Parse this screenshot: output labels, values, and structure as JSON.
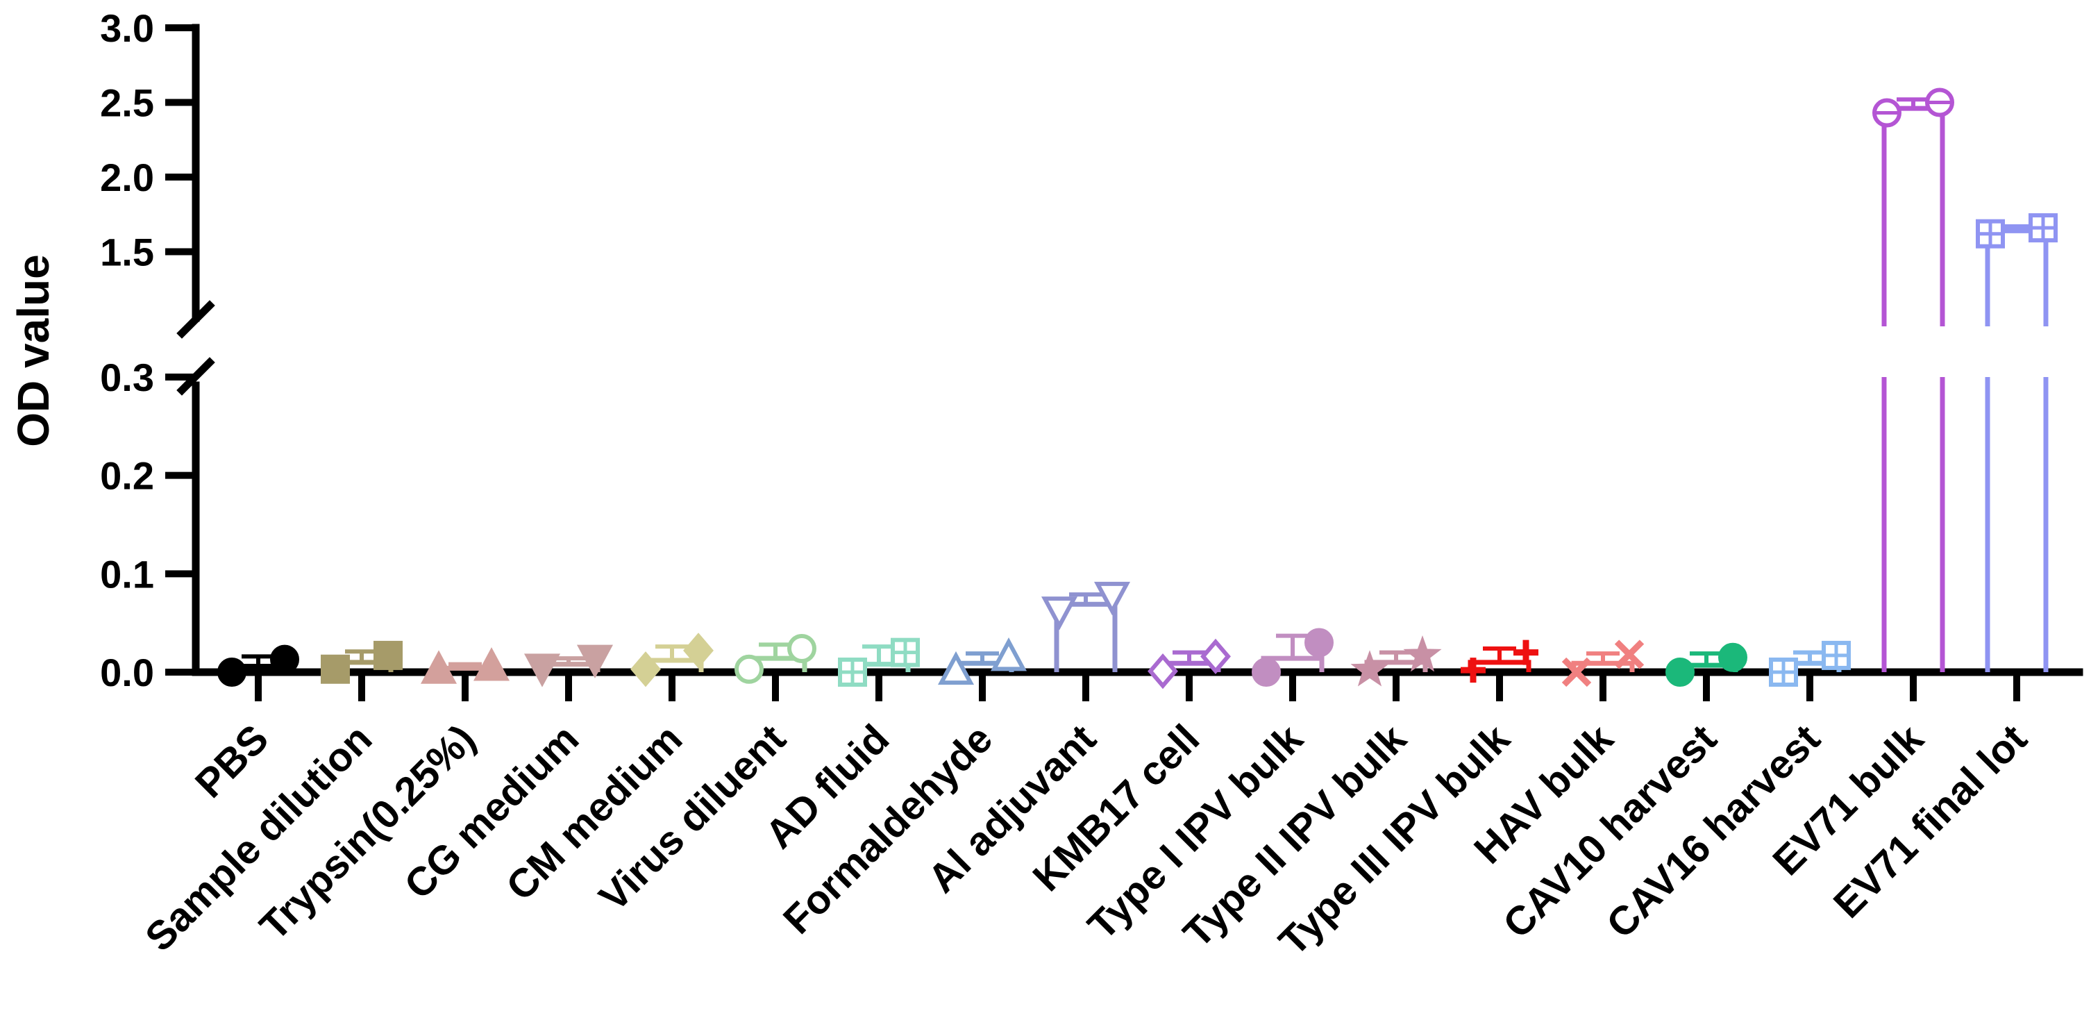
{
  "chart_data": {
    "type": "bar",
    "title": "",
    "xlabel": "",
    "ylabel": "OD value",
    "axis_break": {
      "lower": [
        0,
        0.3
      ],
      "upper": [
        1.0,
        3.0
      ]
    },
    "yticks_lower": [
      "0.0",
      "0.1",
      "0.2",
      "0.3"
    ],
    "yticks_upper": [
      "1.5",
      "2.0",
      "2.5",
      "3.0"
    ],
    "categories": [
      "PBS",
      "Sample dilution",
      "Trypsin(0.25%)",
      "CG medium",
      "CM medium",
      "Virus diluent",
      "AD fluid",
      "Formaldehyde",
      "Al adjuvant",
      "KMB17 cell",
      "Type I IPV bulk",
      "Type II IPV bulk",
      "Type III IPV bulk",
      "HAV bulk",
      "CAV10 harvest",
      "CAV16 harvest",
      "EV71 bulk",
      "EV71 final lot"
    ],
    "series": [
      {
        "name": "PBS",
        "color": "#000000",
        "marker": "circle",
        "filled": true,
        "mean": 0.006,
        "sd": 0.01,
        "points": [
          0.0,
          0.013
        ]
      },
      {
        "name": "Sample dilution",
        "color": "#a69b69",
        "marker": "square",
        "filled": true,
        "mean": 0.01,
        "sd": 0.011,
        "points": [
          0.003,
          0.017
        ]
      },
      {
        "name": "Trypsin(0.25%)",
        "color": "#d3a09c",
        "marker": "triangle-up",
        "filled": true,
        "mean": 0.004,
        "sd": 0.004,
        "points": [
          0.003,
          0.006
        ]
      },
      {
        "name": "CG medium",
        "color": "#c9a1a1",
        "marker": "triangle-down",
        "filled": true,
        "mean": 0.008,
        "sd": 0.006,
        "points": [
          0.004,
          0.013
        ]
      },
      {
        "name": "CM medium",
        "color": "#d4d095",
        "marker": "diamond",
        "filled": true,
        "mean": 0.012,
        "sd": 0.014,
        "points": [
          0.003,
          0.022
        ]
      },
      {
        "name": "Virus diluent",
        "color": "#9fd49f",
        "marker": "circle",
        "filled": false,
        "mean": 0.014,
        "sd": 0.014,
        "points": [
          0.003,
          0.024
        ]
      },
      {
        "name": "AD fluid",
        "color": "#8fdcc3",
        "marker": "square-cross",
        "filled": false,
        "mean": 0.008,
        "sd": 0.018,
        "points": [
          0.0,
          0.02
        ]
      },
      {
        "name": "Formaldehyde",
        "color": "#7f9fd0",
        "marker": "triangle-up",
        "filled": false,
        "mean": 0.009,
        "sd": 0.01,
        "points": [
          0.002,
          0.016
        ]
      },
      {
        "name": "Al adjuvant",
        "color": "#8f92d0",
        "marker": "triangle-down",
        "filled": false,
        "mean": 0.069,
        "sd": 0.01,
        "points": [
          0.062,
          0.077
        ]
      },
      {
        "name": "KMB17 cell",
        "color": "#a96ad0",
        "marker": "diamond",
        "filled": false,
        "mean": 0.009,
        "sd": 0.011,
        "points": [
          0.001,
          0.016
        ]
      },
      {
        "name": "Type I IPV bulk",
        "color": "#c18ec1",
        "marker": "circle-bar",
        "filled": true,
        "mean": 0.014,
        "sd": 0.023,
        "points": [
          0.0,
          0.03
        ]
      },
      {
        "name": "Type II IPV bulk",
        "color": "#c890a5",
        "marker": "star",
        "filled": true,
        "mean": 0.01,
        "sd": 0.01,
        "points": [
          0.002,
          0.017
        ]
      },
      {
        "name": "Type III IPV bulk",
        "color": "#ee1111",
        "marker": "plus",
        "filled": true,
        "mean": 0.01,
        "sd": 0.014,
        "points": [
          0.002,
          0.02
        ]
      },
      {
        "name": "HAV bulk",
        "color": "#f08080",
        "marker": "x",
        "filled": true,
        "mean": 0.009,
        "sd": 0.01,
        "points": [
          0.0,
          0.018
        ]
      },
      {
        "name": "CAV10 harvest",
        "color": "#1bb87a",
        "marker": "circle",
        "filled": true,
        "mean": 0.007,
        "sd": 0.012,
        "points": [
          0.0,
          0.015
        ]
      },
      {
        "name": "CAV16 harvest",
        "color": "#8ab8f0",
        "marker": "square-cross",
        "filled": false,
        "mean": 0.009,
        "sd": 0.011,
        "points": [
          0.0,
          0.017
        ]
      },
      {
        "name": "EV71 bulk",
        "color": "#b455d4",
        "marker": "circle-bar",
        "filled": false,
        "mean": 2.46,
        "sd": 0.06,
        "points": [
          2.43,
          2.5
        ]
      },
      {
        "name": "EV71 final lot",
        "color": "#8f94f2",
        "marker": "square-cross",
        "filled": false,
        "mean": 1.64,
        "sd": 0.03,
        "points": [
          1.62,
          1.66
        ]
      }
    ]
  }
}
